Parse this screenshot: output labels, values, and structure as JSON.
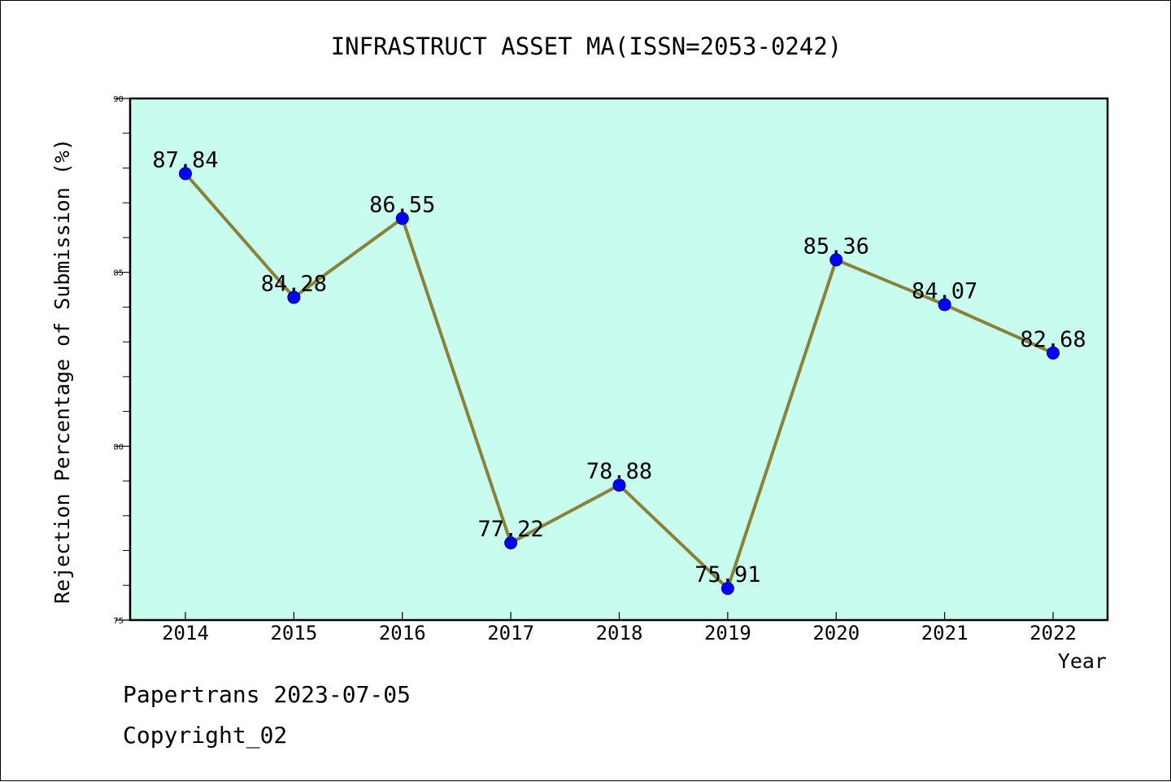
{
  "chart_data": {
    "type": "line",
    "title": "INFRASTRUCT ASSET MA(ISSN=2053-0242)",
    "xlabel": "Year",
    "ylabel": "Rejection Percentage of Submission (%)",
    "categories": [
      "2014",
      "2015",
      "2016",
      "2017",
      "2018",
      "2019",
      "2020",
      "2021",
      "2022"
    ],
    "series": [
      {
        "values": [
          87.84,
          84.28,
          86.55,
          77.22,
          78.88,
          75.91,
          85.36,
          84.07,
          82.68
        ],
        "data_labels": [
          "87.84",
          "84.28",
          "86.55",
          "77.22",
          "78.88",
          "75.91",
          "85.36",
          "84.07",
          "82.68"
        ],
        "line_color": "#8b8239",
        "marker_color": "#0000ff"
      }
    ],
    "ylim": [
      75,
      90
    ],
    "yticks_major": [
      75,
      80,
      85,
      90
    ],
    "yticks_major_labels": [
      "75",
      "80",
      "85",
      "90"
    ],
    "yticks_minor_step": 1,
    "plot_background": "#c8fcee",
    "grid": false,
    "legend": "none"
  },
  "footer": {
    "line1": "Papertrans 2023-07-05",
    "line2": "Copyright_02"
  }
}
